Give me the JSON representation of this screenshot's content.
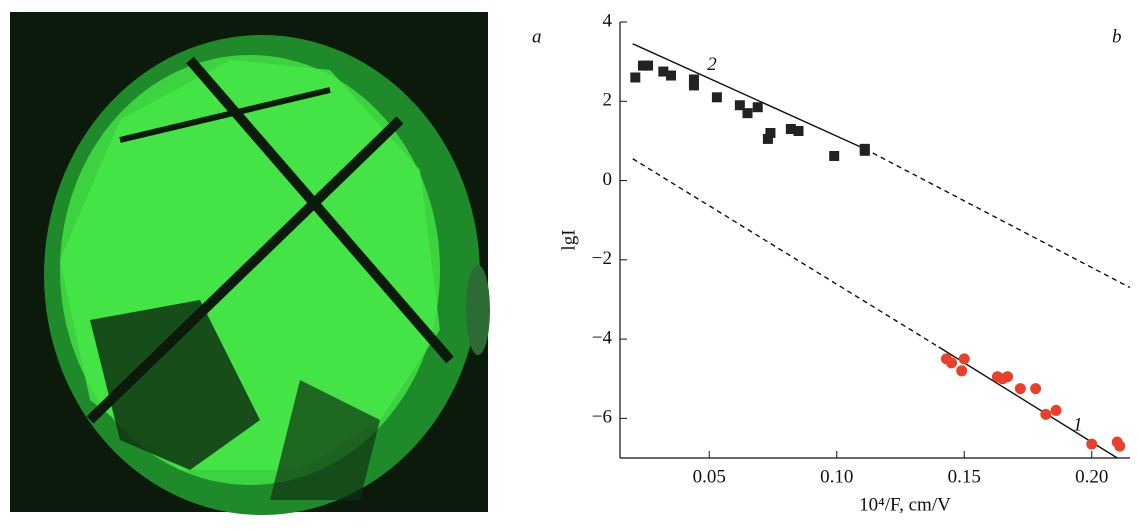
{
  "panel_labels": [
    "a",
    "b"
  ],
  "chart_data": {
    "type": "scatter",
    "x_label": "10⁴/F, cm/V",
    "y_label": "lgI",
    "xlim": [
      0.015,
      0.215
    ],
    "ylim": [
      -7,
      4
    ],
    "xticks": [
      0.05,
      {
        "value": 0.1,
        "label": "0.10"
      },
      0.15,
      {
        "value": 0.2,
        "label": "0.20"
      }
    ],
    "yticks": [
      {
        "value": -6,
        "label": "−6"
      },
      {
        "value": -4,
        "label": "−4"
      },
      {
        "value": -2,
        "label": "−2"
      },
      0,
      2,
      4
    ],
    "series": [
      {
        "name": "1",
        "color": "#e8402a",
        "marker": "circle",
        "x": [
          0.143,
          0.145,
          0.149,
          0.15,
          0.163,
          0.165,
          0.167,
          0.172,
          0.178,
          0.182,
          0.186,
          0.2,
          0.21,
          0.211
        ],
        "values": [
          -4.5,
          -4.6,
          -4.8,
          -4.5,
          -4.95,
          -5.0,
          -4.95,
          -5.25,
          -5.25,
          -5.9,
          -5.8,
          -6.65,
          -6.6,
          -6.7
        ],
        "fit": {
          "x": [
            0.02,
            0.14,
            0.21
          ],
          "values": [
            0.55,
            -4.2,
            -7
          ]
        }
      },
      {
        "name": "2",
        "color": "#222222",
        "marker": "square",
        "x": [
          0.021,
          0.024,
          0.026,
          0.032,
          0.035,
          0.044,
          0.044,
          0.053,
          0.062,
          0.065,
          0.069,
          0.073,
          0.074,
          0.082,
          0.085,
          0.099,
          0.111,
          0.111
        ],
        "values": [
          2.6,
          2.9,
          2.9,
          2.75,
          2.65,
          2.55,
          2.4,
          2.1,
          1.9,
          1.7,
          1.85,
          1.05,
          1.2,
          1.3,
          1.25,
          0.62,
          0.75,
          0.8
        ],
        "fit": {
          "x": [
            0.02,
            0.111,
            0.215
          ],
          "values": [
            3.45,
            0.8,
            -2.7
          ]
        }
      }
    ]
  }
}
